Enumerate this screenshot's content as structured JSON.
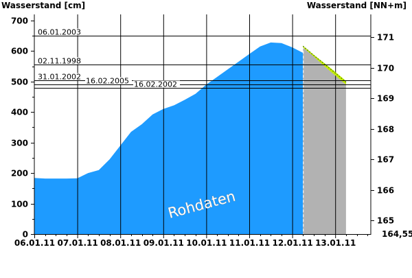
{
  "chart_data": {
    "type": "area",
    "y_left_label": "Wasserstand [cm]",
    "y_right_label": "Wasserstand [NN+m]",
    "watermark": "Rohdaten",
    "x_ticks": [
      "06.01.11",
      "07.01.11",
      "08.01.11",
      "09.01.11",
      "10.01.11",
      "11.01.11",
      "12.01.11",
      "13.01.11"
    ],
    "x_range": [
      0,
      7.82
    ],
    "y_left_range": [
      0,
      720
    ],
    "y_left_ticks": [
      0,
      100,
      200,
      300,
      400,
      500,
      600,
      700
    ],
    "y_right_ticks": [
      165,
      166,
      167,
      168,
      169,
      170,
      171
    ],
    "y_right_bottom_label": "164,55",
    "right_axis_map": {
      "cm_at_165": 45,
      "cm_per_m": 100
    },
    "measured": {
      "x": [
        0,
        0.25,
        0.5,
        0.75,
        1,
        1.25,
        1.5,
        1.75,
        2,
        2.25,
        2.5,
        2.75,
        3,
        3.25,
        3.5,
        3.75,
        4,
        4.25,
        4.5,
        4.75,
        5,
        5.25,
        5.5,
        5.75,
        6,
        6.25
      ],
      "y": [
        184,
        182,
        182,
        182,
        183,
        200,
        210,
        245,
        290,
        335,
        360,
        392,
        410,
        422,
        440,
        460,
        490,
        515,
        540,
        565,
        590,
        615,
        628,
        626,
        612,
        594
      ]
    },
    "forecast": {
      "x": [
        6.25,
        6.5,
        6.75,
        7.0,
        7.25
      ],
      "y": [
        616,
        586,
        557,
        528,
        498
      ],
      "band_upper": [
        616,
        588,
        560,
        532,
        502
      ],
      "band_lower": [
        612,
        582,
        550,
        520,
        490
      ]
    },
    "forecast_start": 6.25,
    "forecast_end": 7.25,
    "reference_lines": [
      {
        "label": "06.01.2003",
        "value": 650
      },
      {
        "label": "02.11.1998",
        "value": 555
      },
      {
        "label": "31.01.2002",
        "value": 505
      },
      {
        "label": "16.02.2005",
        "value": 490
      },
      {
        "label": "16.02.2002",
        "value": 480
      }
    ],
    "colors": {
      "measured_fill": "#1e9bff",
      "forecast_fill": "#b2b2b2",
      "forecast_line": "#5c8c00",
      "forecast_band": "#c8f000",
      "ref_line": "#000000"
    }
  }
}
